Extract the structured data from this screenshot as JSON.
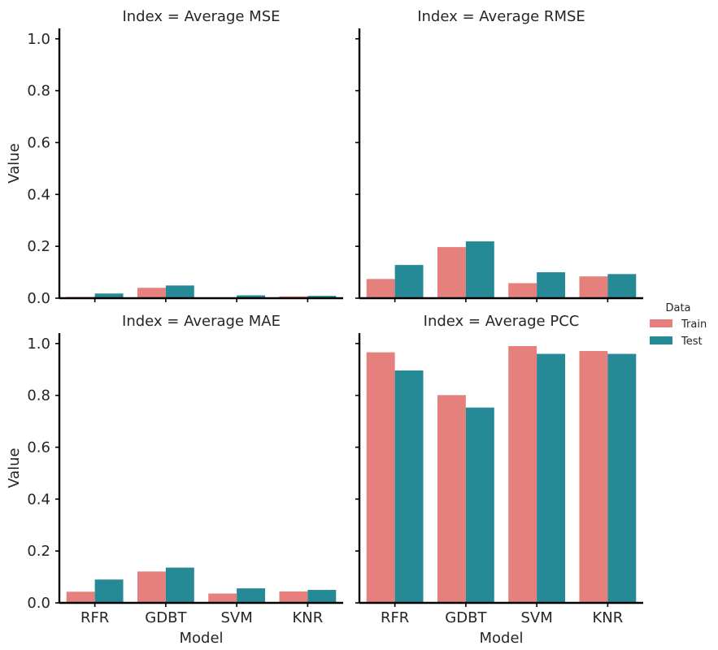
{
  "figure": {
    "ylabel": "Value",
    "xlabel": "Model",
    "legend": {
      "title": "Data",
      "placement": "right",
      "entries": [
        {
          "label": "Train",
          "color": "#e5807c"
        },
        {
          "label": "Test",
          "color": "#268996"
        }
      ]
    }
  },
  "chart_data": [
    {
      "type": "bar",
      "title": "Index = Average MSE",
      "categories": [
        "RFR",
        "GDBT",
        "SVM",
        "KNR"
      ],
      "series": [
        {
          "name": "Train",
          "values": [
            0.005,
            0.04,
            0.002,
            0.007
          ]
        },
        {
          "name": "Test",
          "values": [
            0.018,
            0.049,
            0.011,
            0.009
          ]
        }
      ],
      "xlabel": "",
      "ylabel": "Value",
      "ylim": [
        0,
        1.04
      ],
      "yticks": [
        0.0,
        0.2,
        0.4,
        0.6,
        0.8,
        1.0
      ]
    },
    {
      "type": "bar",
      "title": "Index = Average RMSE",
      "categories": [
        "RFR",
        "GDBT",
        "SVM",
        "KNR"
      ],
      "series": [
        {
          "name": "Train",
          "values": [
            0.074,
            0.197,
            0.058,
            0.084
          ]
        },
        {
          "name": "Test",
          "values": [
            0.128,
            0.219,
            0.1,
            0.093
          ]
        }
      ],
      "xlabel": "",
      "ylabel": "",
      "ylim": [
        0,
        1.04
      ],
      "yticks": [
        0.0,
        0.2,
        0.4,
        0.6,
        0.8,
        1.0
      ]
    },
    {
      "type": "bar",
      "title": "Index = Average MAE",
      "categories": [
        "RFR",
        "GDBT",
        "SVM",
        "KNR"
      ],
      "series": [
        {
          "name": "Train",
          "values": [
            0.043,
            0.121,
            0.036,
            0.044
          ]
        },
        {
          "name": "Test",
          "values": [
            0.09,
            0.136,
            0.056,
            0.05
          ]
        }
      ],
      "xlabel": "Model",
      "ylabel": "Value",
      "ylim": [
        0,
        1.04
      ],
      "yticks": [
        0.0,
        0.2,
        0.4,
        0.6,
        0.8,
        1.0
      ]
    },
    {
      "type": "bar",
      "title": "Index = Average PCC",
      "categories": [
        "RFR",
        "GDBT",
        "SVM",
        "KNR"
      ],
      "series": [
        {
          "name": "Train",
          "values": [
            0.966,
            0.801,
            0.99,
            0.971
          ]
        },
        {
          "name": "Test",
          "values": [
            0.896,
            0.753,
            0.96,
            0.96
          ]
        }
      ],
      "xlabel": "Model",
      "ylabel": "",
      "ylim": [
        0,
        1.04
      ],
      "yticks": [
        0.0,
        0.2,
        0.4,
        0.6,
        0.8,
        1.0
      ]
    }
  ]
}
